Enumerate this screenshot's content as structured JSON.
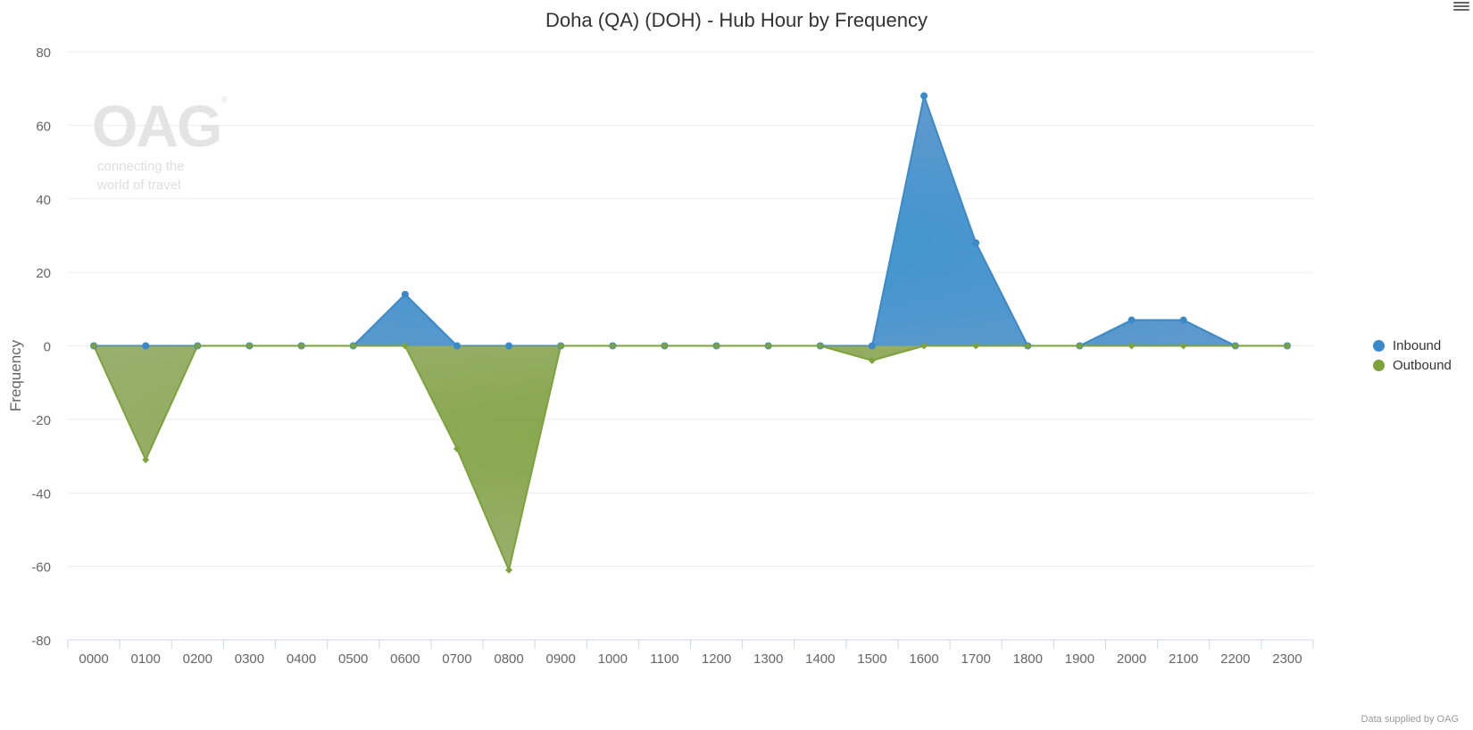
{
  "watermark": {
    "logo": "OAG",
    "tagline_1": "connecting the",
    "tagline_2": "world of travel"
  },
  "credits": "Data supplied by OAG",
  "colors": {
    "inbound": "#3b89c8",
    "outbound": "#7da23c"
  },
  "chart_data": {
    "type": "area",
    "title": "Doha (QA) (DOH) - Hub Hour by Frequency",
    "xlabel": "",
    "ylabel": "Frequency",
    "ylim": [
      -80,
      80
    ],
    "yticks": [
      -80,
      -60,
      -40,
      -20,
      0,
      20,
      40,
      60,
      80
    ],
    "categories": [
      "0000",
      "0100",
      "0200",
      "0300",
      "0400",
      "0500",
      "0600",
      "0700",
      "0800",
      "0900",
      "1000",
      "1100",
      "1200",
      "1300",
      "1400",
      "1500",
      "1600",
      "1700",
      "1800",
      "1900",
      "2000",
      "2100",
      "2200",
      "2300"
    ],
    "legend_position": "right",
    "grid": true,
    "series": [
      {
        "name": "Inbound",
        "values": [
          0,
          0,
          0,
          0,
          0,
          0,
          14,
          0,
          0,
          0,
          0,
          0,
          0,
          0,
          0,
          0,
          68,
          28,
          0,
          0,
          7,
          7,
          0,
          0
        ]
      },
      {
        "name": "Outbound",
        "values": [
          0,
          -31,
          0,
          0,
          0,
          0,
          0,
          -28,
          -61,
          0,
          0,
          0,
          0,
          0,
          0,
          -4,
          0,
          0,
          0,
          0,
          0,
          0,
          0,
          0
        ]
      }
    ]
  }
}
